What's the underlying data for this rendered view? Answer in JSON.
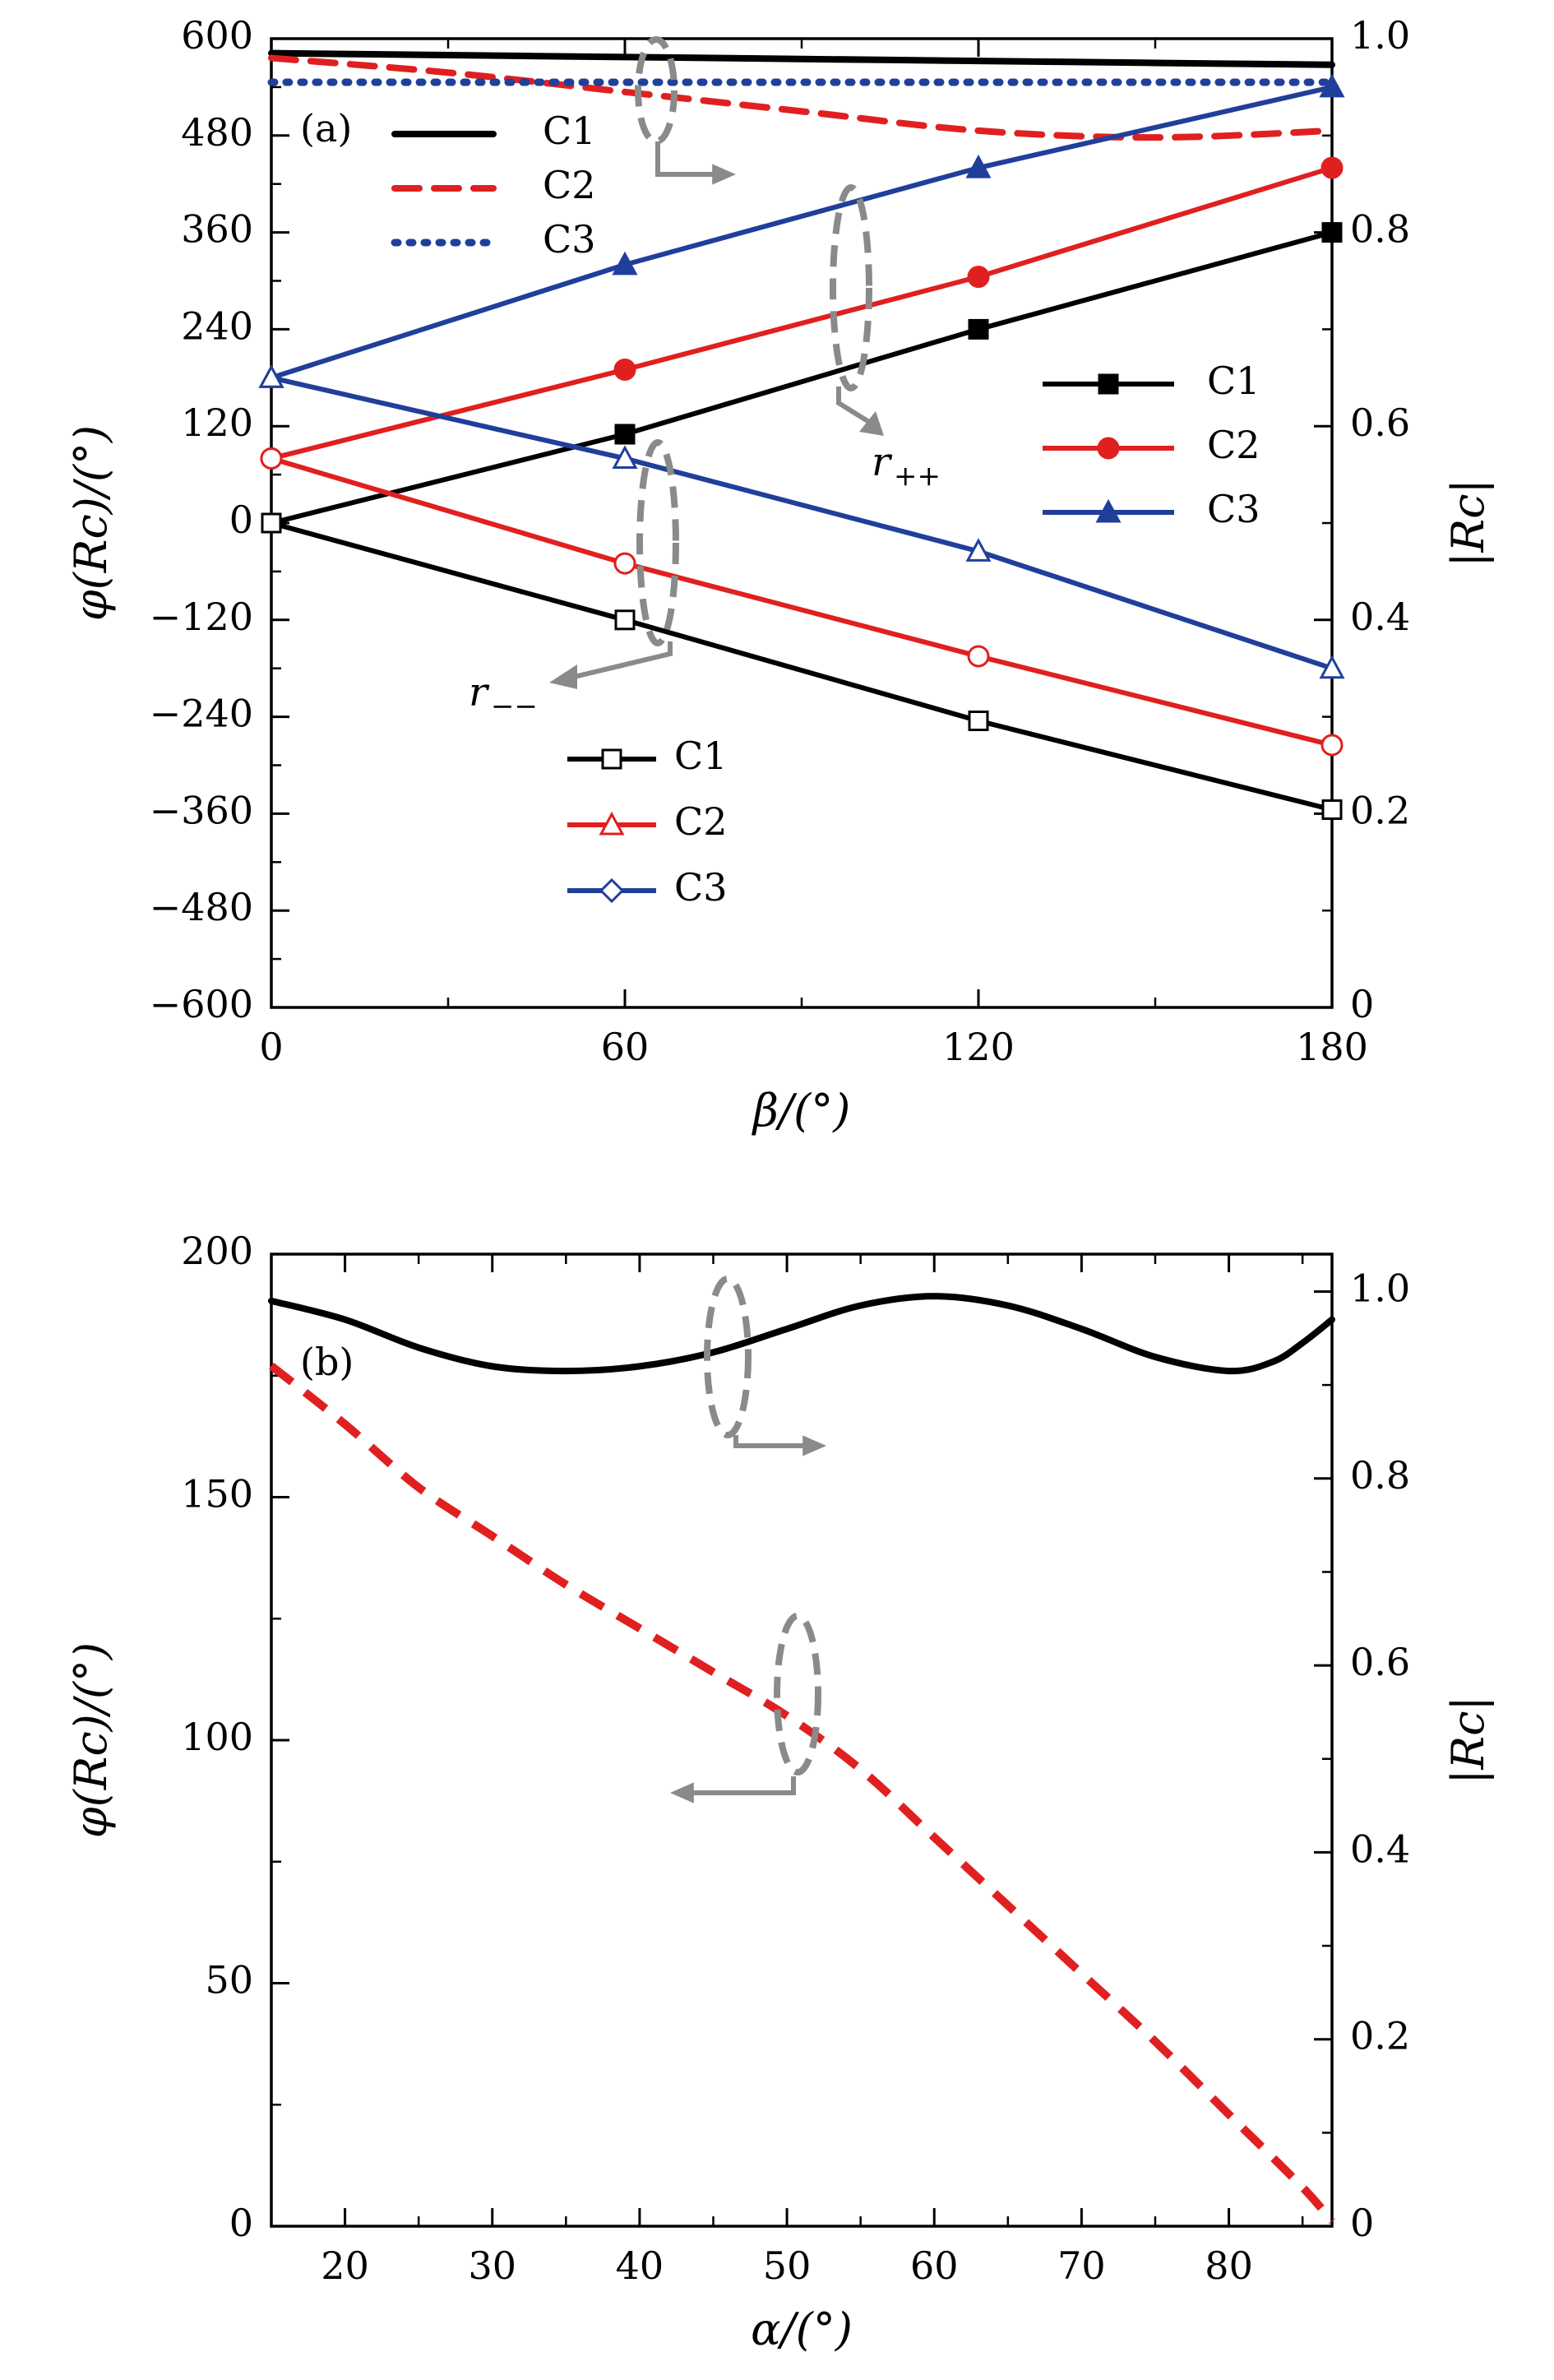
{
  "chart_data": [
    {
      "type": "line",
      "panel_label": "(a)",
      "xlabel": "β/(°)",
      "ylabel_left": "φ(Rc)/(°)",
      "ylabel_right": "|Rc|",
      "xlim": [
        0,
        180
      ],
      "ylim_left": [
        -600,
        600
      ],
      "ylim_right": [
        0,
        1.0
      ],
      "x_ticks": [
        "0",
        "60",
        "120",
        "180"
      ],
      "y_left_ticks": [
        "600",
        "480",
        "360",
        "240",
        "120",
        "0",
        "−120",
        "−240",
        "−360",
        "−480",
        "−600"
      ],
      "y_right_ticks": [
        "1.0",
        "0.8",
        "0.6",
        "0.4",
        "0.2",
        "0"
      ],
      "grid": false,
      "colors": {
        "C1": "#000000",
        "C2": "#e02020",
        "C3": "#1f3f9a",
        "arrow": "#8a8a8a"
      },
      "magnitude_series": [
        {
          "name": "C1",
          "axis": "right",
          "style": "solid",
          "x": [
            0,
            30,
            60,
            90,
            120,
            150,
            180
          ],
          "y": [
            0.985,
            0.983,
            0.981,
            0.979,
            0.977,
            0.975,
            0.973
          ]
        },
        {
          "name": "C2",
          "axis": "right",
          "style": "dashed",
          "x": [
            0,
            30,
            60,
            90,
            120,
            150,
            180
          ],
          "y": [
            0.98,
            0.965,
            0.945,
            0.925,
            0.905,
            0.898,
            0.905
          ]
        },
        {
          "name": "C3",
          "axis": "right",
          "style": "dotted",
          "x": [
            0,
            30,
            60,
            90,
            120,
            150,
            180
          ],
          "y": [
            0.955,
            0.955,
            0.955,
            0.955,
            0.955,
            0.955,
            0.955
          ]
        }
      ],
      "phase_series_r_pp": [
        {
          "name": "C1",
          "axis": "left",
          "marker": "filled-square",
          "x": [
            0,
            60,
            120,
            180
          ],
          "y": [
            0,
            110,
            240,
            360
          ]
        },
        {
          "name": "C2",
          "axis": "left",
          "marker": "filled-circle",
          "x": [
            0,
            60,
            120,
            180
          ],
          "y": [
            80,
            190,
            305,
            440
          ]
        },
        {
          "name": "C3",
          "axis": "left",
          "marker": "filled-triangle",
          "x": [
            0,
            60,
            120,
            180
          ],
          "y": [
            180,
            320,
            440,
            540
          ]
        }
      ],
      "phase_series_r_mm": [
        {
          "name": "C1",
          "axis": "left",
          "marker": "open-square",
          "x": [
            0,
            60,
            120,
            180
          ],
          "y": [
            0,
            -120,
            -245,
            -355
          ]
        },
        {
          "name": "C2",
          "axis": "left",
          "marker": "open-circle",
          "x": [
            0,
            60,
            120,
            180
          ],
          "y": [
            80,
            -50,
            -165,
            -275
          ]
        },
        {
          "name": "C3",
          "axis": "left",
          "marker": "open-triangle",
          "x": [
            0,
            60,
            120,
            180
          ],
          "y": [
            180,
            80,
            -35,
            -180
          ]
        }
      ],
      "legend_magnitude": {
        "placement": "top-left",
        "entries": [
          "C1",
          "C2",
          "C3"
        ]
      },
      "legend_r_pp": {
        "placement": "middle-right",
        "entries": [
          "C1",
          "C2",
          "C3"
        ]
      },
      "legend_r_mm": {
        "placement": "bottom-center",
        "entries": [
          "C1",
          "C2",
          "C3"
        ]
      },
      "annotations": {
        "r_pp": "r",
        "r_pp_sub": "++",
        "r_mm": "r",
        "r_mm_sub": "−−"
      }
    },
    {
      "type": "line",
      "panel_label": "(b)",
      "xlabel": "α/(°)",
      "ylabel_left": "φ(Rc)/(°)",
      "ylabel_right": "|Rc|",
      "xlim": [
        15,
        87
      ],
      "ylim_left": [
        0,
        200
      ],
      "ylim_right": [
        0,
        1.04
      ],
      "x_ticks": [
        "20",
        "30",
        "40",
        "50",
        "60",
        "70",
        "80"
      ],
      "y_left_ticks": [
        "200",
        "150",
        "100",
        "50",
        "0"
      ],
      "y_right_ticks": [
        "1.0",
        "0.8",
        "0.6",
        "0.4",
        "0.2",
        "0"
      ],
      "grid": false,
      "colors": {
        "magnitude": "#000000",
        "phase": "#e02020",
        "arrow": "#8a8a8a"
      },
      "series": [
        {
          "axis": "right",
          "style": "solid",
          "x": [
            15,
            20,
            25,
            30,
            35,
            40,
            45,
            50,
            55,
            60,
            65,
            70,
            75,
            80,
            83,
            85,
            87
          ],
          "y": [
            0.99,
            0.97,
            0.94,
            0.92,
            0.915,
            0.92,
            0.935,
            0.96,
            0.985,
            0.995,
            0.985,
            0.96,
            0.93,
            0.915,
            0.925,
            0.945,
            0.97
          ]
        },
        {
          "axis": "left",
          "style": "dashed",
          "x": [
            15,
            20,
            25,
            30,
            35,
            40,
            45,
            50,
            55,
            60,
            65,
            70,
            75,
            80,
            85,
            87
          ],
          "y": [
            177,
            165,
            152,
            142,
            132,
            123,
            114,
            105,
            94,
            80,
            66,
            52,
            38,
            23,
            8,
            1
          ]
        }
      ]
    }
  ]
}
